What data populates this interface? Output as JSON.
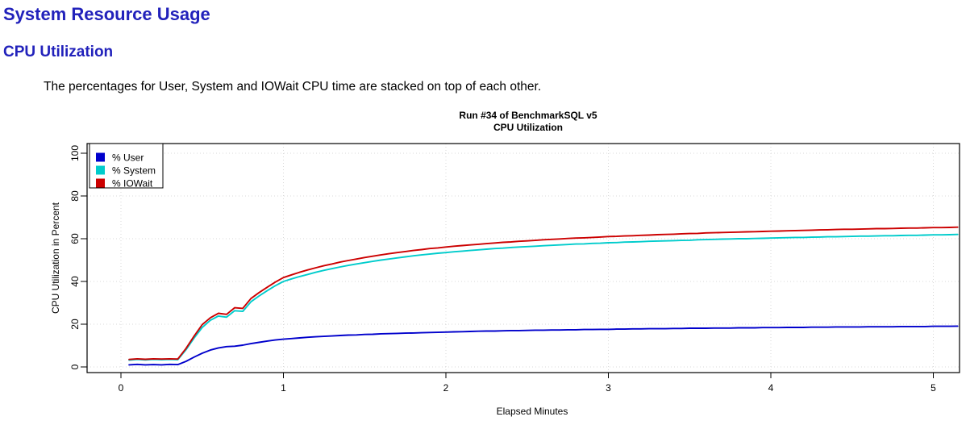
{
  "page": {
    "title": "System Resource Usage",
    "section_title": "CPU Utilization",
    "description": "The percentages for User, System and IOWait CPU time are stacked on top of each other."
  },
  "colors": {
    "heading": "#2222bb",
    "user": "#0000cc",
    "system": "#00cccc",
    "iowait": "#cc0000",
    "grid": "#d8d8d8"
  },
  "chart_data": {
    "type": "line",
    "title_line1": "Run #34 of BenchmarkSQL v5",
    "title_line2": "CPU Utilization",
    "xlabel": "Elapsed Minutes",
    "ylabel": "CPU Utilization in Percent",
    "xlim": [
      0,
      5.15
    ],
    "ylim": [
      0,
      100
    ],
    "xticks": [
      0,
      1,
      2,
      3,
      4,
      5
    ],
    "yticks": [
      0,
      20,
      40,
      60,
      80,
      100
    ],
    "grid": "dotted",
    "legend_position": "top-left",
    "legend": [
      "% User",
      "% System",
      "% IOWait"
    ],
    "x": [
      0.05,
      0.1,
      0.15,
      0.2,
      0.25,
      0.3,
      0.35,
      0.4,
      0.45,
      0.5,
      0.55,
      0.6,
      0.65,
      0.7,
      0.75,
      0.8,
      0.85,
      0.9,
      0.95,
      1,
      1.05,
      1.1,
      1.15,
      1.2,
      1.25,
      1.3,
      1.35,
      1.4,
      1.45,
      1.5,
      1.55,
      1.6,
      1.65,
      1.7,
      1.75,
      1.8,
      1.85,
      1.9,
      1.95,
      2,
      2.05,
      2.1,
      2.15,
      2.2,
      2.25,
      2.3,
      2.35,
      2.4,
      2.45,
      2.5,
      2.55,
      2.6,
      2.65,
      2.7,
      2.75,
      2.8,
      2.85,
      2.9,
      2.95,
      3,
      3.05,
      3.1,
      3.15,
      3.2,
      3.25,
      3.3,
      3.35,
      3.4,
      3.45,
      3.5,
      3.55,
      3.6,
      3.65,
      3.7,
      3.75,
      3.8,
      3.85,
      3.9,
      3.95,
      4,
      4.05,
      4.1,
      4.15,
      4.2,
      4.25,
      4.3,
      4.35,
      4.4,
      4.45,
      4.5,
      4.55,
      4.6,
      4.65,
      4.7,
      4.75,
      4.8,
      4.85,
      4.9,
      4.95,
      5,
      5.05,
      5.1,
      5.15
    ],
    "series": [
      {
        "name": "% User",
        "key": "user",
        "color": "#0000cc",
        "values": [
          1.0,
          1.2,
          1.0,
          1.1,
          1.0,
          1.2,
          1.1,
          2.6,
          4.6,
          6.4,
          7.9,
          8.9,
          9.5,
          9.7,
          10.2,
          10.9,
          11.5,
          12.1,
          12.6,
          13.0,
          13.3,
          13.6,
          13.9,
          14.1,
          14.3,
          14.5,
          14.7,
          14.9,
          15.0,
          15.2,
          15.3,
          15.5,
          15.6,
          15.7,
          15.8,
          15.9,
          16.0,
          16.1,
          16.2,
          16.3,
          16.4,
          16.5,
          16.6,
          16.7,
          16.8,
          16.8,
          16.9,
          17.0,
          17.0,
          17.1,
          17.2,
          17.2,
          17.3,
          17.3,
          17.4,
          17.4,
          17.5,
          17.5,
          17.6,
          17.6,
          17.7,
          17.7,
          17.8,
          17.8,
          17.9,
          17.9,
          17.9,
          18.0,
          18.0,
          18.1,
          18.1,
          18.1,
          18.2,
          18.2,
          18.2,
          18.3,
          18.3,
          18.3,
          18.4,
          18.4,
          18.4,
          18.5,
          18.5,
          18.5,
          18.6,
          18.6,
          18.6,
          18.7,
          18.7,
          18.7,
          18.7,
          18.8,
          18.8,
          18.8,
          18.8,
          18.9,
          18.9,
          18.9,
          18.9,
          19.0,
          19.0,
          19.0,
          19.1
        ]
      },
      {
        "name": "% System",
        "key": "system",
        "color": "#00cccc",
        "values": [
          3.2,
          3.5,
          3.3,
          3.5,
          3.4,
          3.5,
          3.4,
          8.0,
          13.5,
          18.5,
          21.8,
          23.8,
          23.3,
          26.3,
          26.0,
          30.5,
          33.2,
          35.7,
          38.0,
          40.0,
          41.2,
          42.3,
          43.3,
          44.3,
          45.2,
          46.0,
          46.8,
          47.5,
          48.2,
          48.8,
          49.4,
          50.0,
          50.5,
          51.0,
          51.5,
          52.0,
          52.4,
          52.8,
          53.2,
          53.5,
          53.9,
          54.2,
          54.5,
          54.8,
          55.1,
          55.4,
          55.6,
          55.9,
          56.1,
          56.3,
          56.5,
          56.7,
          56.9,
          57.1,
          57.3,
          57.5,
          57.6,
          57.8,
          57.9,
          58.1,
          58.2,
          58.4,
          58.5,
          58.6,
          58.8,
          58.9,
          59.0,
          59.1,
          59.2,
          59.3,
          59.5,
          59.6,
          59.7,
          59.8,
          59.9,
          60.0,
          60.0,
          60.1,
          60.2,
          60.3,
          60.4,
          60.5,
          60.6,
          60.6,
          60.7,
          60.8,
          60.9,
          60.9,
          61.0,
          61.1,
          61.2,
          61.2,
          61.3,
          61.4,
          61.4,
          61.5,
          61.6,
          61.6,
          61.7,
          61.8,
          61.8,
          61.9,
          62.0
        ]
      },
      {
        "name": "% IOWait",
        "key": "iowait",
        "color": "#cc0000",
        "values": [
          3.5,
          3.8,
          3.6,
          3.8,
          3.7,
          3.8,
          3.7,
          8.6,
          14.4,
          19.8,
          23.0,
          25.1,
          24.6,
          27.7,
          27.4,
          32.0,
          34.8,
          37.3,
          39.7,
          41.8,
          43.1,
          44.3,
          45.4,
          46.4,
          47.4,
          48.2,
          49.1,
          49.8,
          50.5,
          51.2,
          51.8,
          52.4,
          53.0,
          53.5,
          54.0,
          54.5,
          54.9,
          55.4,
          55.7,
          56.1,
          56.5,
          56.8,
          57.1,
          57.4,
          57.7,
          58.0,
          58.3,
          58.5,
          58.8,
          59.0,
          59.2,
          59.5,
          59.7,
          59.9,
          60.1,
          60.3,
          60.4,
          60.6,
          60.8,
          61.0,
          61.1,
          61.3,
          61.4,
          61.6,
          61.7,
          61.9,
          62.0,
          62.1,
          62.3,
          62.4,
          62.5,
          62.7,
          62.8,
          62.9,
          63.0,
          63.1,
          63.2,
          63.3,
          63.4,
          63.5,
          63.6,
          63.7,
          63.8,
          63.9,
          64.0,
          64.1,
          64.2,
          64.3,
          64.4,
          64.4,
          64.5,
          64.6,
          64.7,
          64.7,
          64.8,
          64.9,
          65.0,
          65.0,
          65.1,
          65.2,
          65.2,
          65.3,
          65.4
        ]
      }
    ]
  }
}
